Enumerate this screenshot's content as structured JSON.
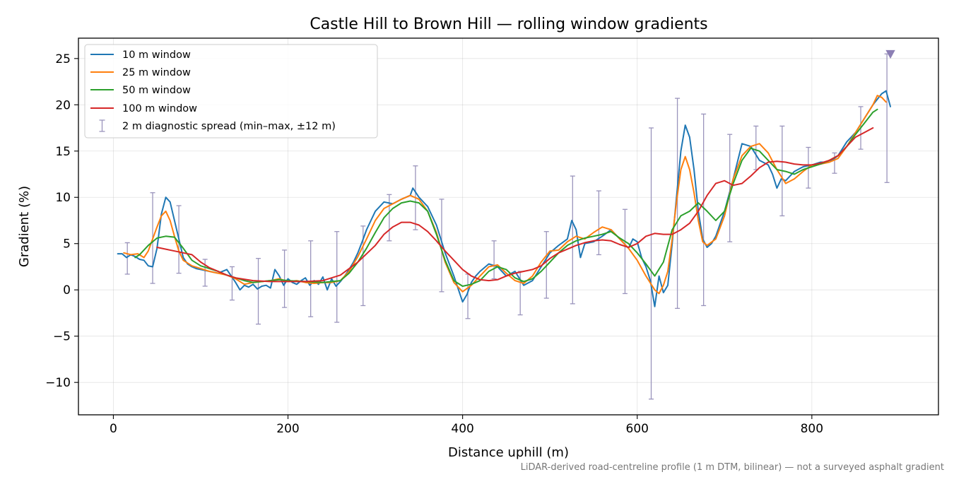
{
  "chart_data": {
    "type": "line",
    "title": "Castle Hill to Brown Hill — rolling window gradients",
    "xlabel": "Distance uphill (m)",
    "ylabel": "Gradient (%)",
    "footnote": "LiDAR-derived road-centreline profile (1 m DTM, bilinear) — not a surveyed asphalt gradient",
    "xlim": [
      -40,
      945
    ],
    "ylim": [
      -13.5,
      27.2
    ],
    "xticks": [
      0,
      200,
      400,
      600,
      800
    ],
    "yticks": [
      -10,
      -5,
      0,
      5,
      10,
      15,
      20,
      25
    ],
    "grid": true,
    "legend_position": "upper left",
    "colors": {
      "10m": "#1f77b4",
      "25m": "#ff7f0e",
      "50m": "#2ca02c",
      "100m": "#d62728",
      "spread": "#9a94bc",
      "marker": "#8c7fb4"
    },
    "series": [
      {
        "name": "10 m window",
        "color": "#1f77b4",
        "x": [
          5,
          10,
          15,
          20,
          25,
          30,
          35,
          40,
          45,
          50,
          55,
          60,
          65,
          70,
          75,
          80,
          85,
          90,
          95,
          100,
          110,
          120,
          130,
          140,
          145,
          150,
          155,
          160,
          165,
          170,
          175,
          180,
          185,
          190,
          195,
          200,
          205,
          210,
          215,
          220,
          225,
          230,
          235,
          240,
          245,
          250,
          255,
          260,
          265,
          270,
          275,
          280,
          285,
          290,
          295,
          300,
          310,
          320,
          330,
          340,
          343,
          350,
          360,
          370,
          380,
          390,
          400,
          405,
          410,
          415,
          420,
          430,
          440,
          450,
          460,
          470,
          480,
          490,
          500,
          510,
          520,
          525,
          530,
          535,
          540,
          550,
          560,
          570,
          580,
          590,
          595,
          600,
          605,
          610,
          615,
          620,
          625,
          630,
          635,
          640,
          645,
          650,
          655,
          660,
          665,
          670,
          675,
          680,
          685,
          690,
          700,
          710,
          720,
          730,
          740,
          750,
          755,
          760,
          765,
          770,
          780,
          790,
          800,
          810,
          820,
          830,
          840,
          850,
          860,
          870,
          880,
          885,
          890
        ],
        "values": [
          3.9,
          3.9,
          3.5,
          3.8,
          3.6,
          3.3,
          3.2,
          2.6,
          2.5,
          4.5,
          8.2,
          10.0,
          9.5,
          7.5,
          5.5,
          3.5,
          2.8,
          2.5,
          2.3,
          2.2,
          2.0,
          1.8,
          2.2,
          0.8,
          0.0,
          0.5,
          0.3,
          0.6,
          0.1,
          0.4,
          0.5,
          0.2,
          2.2,
          1.5,
          0.5,
          1.2,
          0.8,
          0.6,
          1.0,
          1.3,
          0.5,
          1.0,
          0.6,
          1.4,
          0.0,
          1.2,
          0.4,
          0.9,
          1.5,
          2.2,
          3.0,
          4.0,
          5.2,
          6.5,
          7.5,
          8.5,
          9.5,
          9.3,
          9.8,
          10.2,
          11.0,
          10.0,
          9.0,
          7.0,
          4.0,
          1.5,
          -1.3,
          -0.5,
          0.8,
          1.5,
          2.0,
          2.8,
          2.5,
          1.5,
          2.0,
          0.5,
          1.0,
          2.5,
          4.0,
          4.8,
          5.5,
          7.5,
          6.5,
          3.5,
          5.0,
          5.2,
          5.8,
          6.5,
          5.5,
          4.5,
          5.5,
          5.2,
          3.5,
          2.5,
          1.0,
          -1.8,
          1.5,
          -0.3,
          0.5,
          5.0,
          10.0,
          15.0,
          17.8,
          16.5,
          13.0,
          8.5,
          5.5,
          4.6,
          5.0,
          5.8,
          8.5,
          12.0,
          15.8,
          15.5,
          14.0,
          13.5,
          12.5,
          11.0,
          12.0,
          11.8,
          12.8,
          13.3,
          13.5,
          13.8,
          13.8,
          14.5,
          16.0,
          17.0,
          18.5,
          20.0,
          21.2,
          21.5,
          19.8
        ]
      },
      {
        "name": "25 m window",
        "color": "#ff7f0e",
        "x": [
          12,
          20,
          28,
          35,
          40,
          45,
          50,
          55,
          60,
          65,
          70,
          75,
          80,
          90,
          100,
          110,
          120,
          130,
          140,
          150,
          160,
          170,
          180,
          190,
          200,
          210,
          220,
          230,
          240,
          250,
          260,
          270,
          280,
          290,
          300,
          310,
          320,
          330,
          340,
          350,
          360,
          370,
          380,
          390,
          400,
          410,
          420,
          430,
          440,
          450,
          460,
          470,
          480,
          490,
          500,
          510,
          520,
          530,
          540,
          550,
          560,
          570,
          580,
          590,
          600,
          610,
          620,
          625,
          630,
          635,
          640,
          645,
          650,
          655,
          660,
          665,
          670,
          675,
          680,
          690,
          700,
          710,
          720,
          730,
          740,
          750,
          760,
          770,
          780,
          790,
          800,
          810,
          820,
          830,
          840,
          850,
          860,
          870,
          875,
          880,
          885
        ],
        "values": [
          4.0,
          3.8,
          3.9,
          3.5,
          4.2,
          5.5,
          6.8,
          8.0,
          8.5,
          7.5,
          5.8,
          4.2,
          3.2,
          2.6,
          2.3,
          2.0,
          1.8,
          1.6,
          1.2,
          0.6,
          0.8,
          0.9,
          1.0,
          1.2,
          0.9,
          1.0,
          0.8,
          0.7,
          0.8,
          0.8,
          1.0,
          2.0,
          3.6,
          5.5,
          7.5,
          8.8,
          9.3,
          9.8,
          10.2,
          9.8,
          8.5,
          6.2,
          3.0,
          0.8,
          -0.2,
          0.5,
          1.5,
          2.5,
          2.7,
          1.8,
          1.0,
          0.7,
          1.5,
          3.0,
          4.2,
          4.3,
          5.2,
          5.8,
          5.5,
          6.2,
          6.8,
          6.5,
          5.5,
          4.5,
          3.2,
          1.5,
          0.0,
          -0.4,
          0.5,
          2.0,
          5.5,
          9.5,
          13.0,
          14.4,
          13.0,
          10.5,
          7.5,
          5.2,
          4.8,
          5.5,
          8.0,
          12.0,
          14.5,
          15.5,
          15.8,
          14.8,
          13.0,
          11.5,
          12.0,
          12.8,
          13.5,
          13.6,
          13.8,
          14.2,
          15.5,
          17.0,
          18.5,
          20.0,
          21.0,
          20.8,
          20.3
        ]
      },
      {
        "name": "50 m window",
        "color": "#2ca02c",
        "x": [
          25,
          30,
          40,
          50,
          60,
          70,
          80,
          90,
          100,
          110,
          120,
          130,
          140,
          150,
          160,
          170,
          180,
          190,
          200,
          220,
          240,
          260,
          270,
          280,
          290,
          300,
          310,
          320,
          330,
          340,
          350,
          360,
          370,
          380,
          390,
          400,
          410,
          420,
          430,
          440,
          450,
          460,
          470,
          480,
          490,
          500,
          510,
          520,
          530,
          540,
          550,
          560,
          570,
          580,
          590,
          600,
          610,
          620,
          630,
          640,
          650,
          660,
          670,
          680,
          690,
          700,
          710,
          720,
          730,
          740,
          750,
          760,
          770,
          780,
          790,
          800,
          810,
          820,
          830,
          840,
          850,
          860,
          870,
          875
        ],
        "values": [
          3.5,
          3.8,
          4.8,
          5.6,
          5.8,
          5.7,
          4.5,
          3.2,
          2.6,
          2.3,
          2.0,
          1.6,
          1.3,
          1.0,
          0.8,
          0.9,
          1.0,
          1.1,
          1.0,
          0.9,
          0.8,
          1.0,
          1.8,
          3.0,
          4.5,
          6.2,
          7.8,
          8.8,
          9.4,
          9.6,
          9.4,
          8.5,
          6.0,
          3.2,
          1.0,
          0.4,
          0.6,
          1.0,
          2.0,
          2.5,
          2.2,
          1.3,
          0.9,
          1.2,
          2.0,
          3.0,
          4.0,
          4.8,
          5.3,
          5.6,
          5.8,
          6.0,
          6.3,
          5.6,
          5.0,
          4.0,
          2.8,
          1.5,
          3.0,
          6.5,
          8.0,
          8.5,
          9.4,
          8.5,
          7.5,
          8.5,
          11.5,
          14.0,
          15.3,
          15.0,
          14.0,
          13.0,
          12.8,
          12.5,
          13.0,
          13.3,
          13.6,
          14.0,
          14.5,
          15.5,
          16.8,
          18.0,
          19.2,
          19.5
        ]
      },
      {
        "name": "100 m window",
        "color": "#d62728",
        "x": [
          50,
          60,
          70,
          80,
          90,
          100,
          110,
          120,
          130,
          140,
          160,
          180,
          200,
          220,
          240,
          260,
          280,
          300,
          310,
          320,
          330,
          340,
          350,
          360,
          370,
          380,
          390,
          400,
          410,
          420,
          430,
          440,
          450,
          460,
          470,
          480,
          490,
          500,
          510,
          520,
          530,
          540,
          550,
          560,
          570,
          580,
          590,
          600,
          610,
          620,
          630,
          640,
          650,
          660,
          670,
          680,
          690,
          700,
          710,
          720,
          730,
          740,
          750,
          760,
          770,
          780,
          790,
          800,
          810,
          820,
          830,
          840,
          850,
          860,
          870
        ],
        "values": [
          4.6,
          4.4,
          4.2,
          4.0,
          3.8,
          3.0,
          2.4,
          2.0,
          1.6,
          1.3,
          1.0,
          0.9,
          0.9,
          0.9,
          1.0,
          1.6,
          3.0,
          4.8,
          6.0,
          6.8,
          7.3,
          7.3,
          7.0,
          6.3,
          5.3,
          4.2,
          3.2,
          2.2,
          1.5,
          1.1,
          1.0,
          1.1,
          1.5,
          1.8,
          2.0,
          2.2,
          2.6,
          3.4,
          4.0,
          4.4,
          4.8,
          5.1,
          5.3,
          5.4,
          5.3,
          4.9,
          4.6,
          5.0,
          5.8,
          6.1,
          6.0,
          6.0,
          6.5,
          7.2,
          8.5,
          10.2,
          11.5,
          11.8,
          11.3,
          11.5,
          12.3,
          13.2,
          13.8,
          13.9,
          13.8,
          13.6,
          13.5,
          13.5,
          13.7,
          14.0,
          14.5,
          15.5,
          16.5,
          17.0,
          17.5
        ]
      }
    ],
    "error_bars": {
      "name": "2 m diagnostic spread (min–max, ±12 m)",
      "color": "#9a94bc",
      "x": [
        16,
        45,
        75,
        105,
        136,
        166,
        196,
        226,
        256,
        286,
        316,
        346,
        376,
        406,
        436,
        466,
        496,
        526,
        556,
        586,
        616,
        646,
        676,
        706,
        736,
        766,
        796,
        826,
        856,
        886
      ],
      "low": [
        1.7,
        0.7,
        1.8,
        0.4,
        -1.1,
        -3.7,
        -1.9,
        -2.9,
        -3.5,
        -1.7,
        5.3,
        6.5,
        -0.2,
        -3.1,
        1.2,
        -2.7,
        -0.9,
        -1.5,
        3.8,
        -0.4,
        -11.8,
        -2.0,
        -1.7,
        5.2,
        13.0,
        8.0,
        11.0,
        12.6,
        15.2,
        11.6
      ],
      "high": [
        5.1,
        10.5,
        9.1,
        3.3,
        2.5,
        3.4,
        4.3,
        5.3,
        6.3,
        6.9,
        10.3,
        13.4,
        9.8,
        1.7,
        5.3,
        2.0,
        6.3,
        12.3,
        10.7,
        8.7,
        17.5,
        20.7,
        19.0,
        16.8,
        17.7,
        17.7,
        15.4,
        14.8,
        19.8,
        25.5
      ]
    },
    "markers": [
      {
        "x": 890,
        "y": 25.5,
        "symbol": "triangle-down",
        "color": "#8c7fb4"
      }
    ]
  }
}
